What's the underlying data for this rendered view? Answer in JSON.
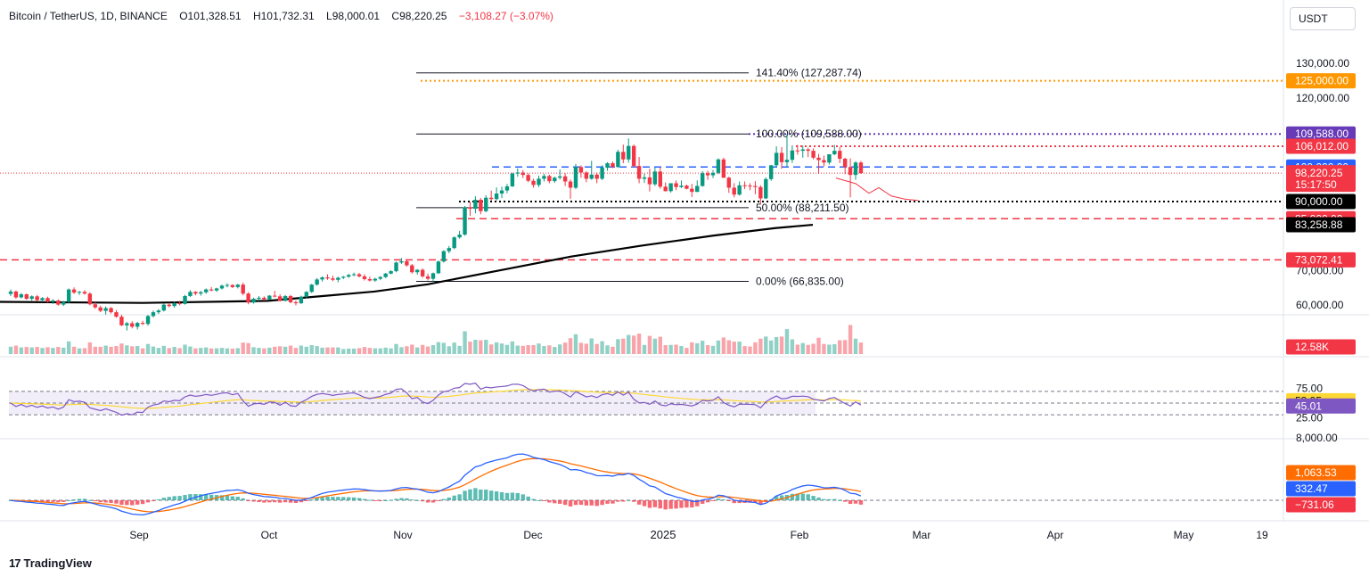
{
  "header": {
    "symbol": "Bitcoin / TetherUS, 1D, BINANCE",
    "open": "O101,328.51",
    "high": "H101,732.31",
    "low": "L98,000.01",
    "close": "C98,220.25",
    "change": "−3,108.27 (−3.07%)"
  },
  "currency_button": "USDT",
  "brand": "TradingView",
  "chart_data": {
    "type": "candlestick",
    "x_ticks": [
      "Sep",
      "Oct",
      "Nov",
      "Dec",
      "2025",
      "Feb",
      "Mar",
      "Apr",
      "May",
      "19"
    ],
    "price_axis": {
      "range": [
        60000,
        132000
      ],
      "tick_labels": [
        "130,000.00",
        "120,000.00",
        "100,000.00",
        "70,000.00",
        "60,000.00"
      ]
    },
    "candles": [
      [
        63200,
        64500,
        62600,
        63900
      ],
      [
        63900,
        64200,
        61800,
        62200
      ],
      [
        62200,
        63500,
        61900,
        63100
      ],
      [
        63100,
        63300,
        61500,
        61800
      ],
      [
        61800,
        62800,
        61200,
        62500
      ],
      [
        62500,
        62900,
        61100,
        61400
      ],
      [
        61400,
        62300,
        60900,
        62000
      ],
      [
        62000,
        62400,
        60700,
        60900
      ],
      [
        60900,
        61700,
        60300,
        61300
      ],
      [
        61300,
        61600,
        59800,
        60100
      ],
      [
        60100,
        61200,
        59700,
        60900
      ],
      [
        60900,
        64800,
        60600,
        64500
      ],
      [
        64500,
        65100,
        63200,
        63600
      ],
      [
        63600,
        64100,
        62900,
        63800
      ],
      [
        63800,
        64300,
        63000,
        63300
      ],
      [
        63300,
        63700,
        59900,
        60200
      ],
      [
        60200,
        60800,
        58900,
        59300
      ],
      [
        59300,
        59800,
        57900,
        58300
      ],
      [
        58300,
        59600,
        57200,
        59100
      ],
      [
        59100,
        59400,
        57500,
        57900
      ],
      [
        57900,
        58500,
        56300,
        56600
      ],
      [
        56600,
        57200,
        53900,
        54100
      ],
      [
        54100,
        55100,
        52600,
        54700
      ],
      [
        54700,
        55300,
        53200,
        53700
      ],
      [
        53700,
        55100,
        52900,
        54800
      ],
      [
        54800,
        55400,
        54200,
        54500
      ],
      [
        54500,
        57100,
        54000,
        56800
      ],
      [
        56800,
        58400,
        56400,
        57900
      ],
      [
        57900,
        58800,
        57400,
        58400
      ],
      [
        58400,
        60400,
        58100,
        60100
      ],
      [
        60100,
        60600,
        59300,
        59700
      ],
      [
        59700,
        61000,
        59200,
        60500
      ],
      [
        60500,
        61200,
        59900,
        60300
      ],
      [
        60300,
        62900,
        60100,
        62600
      ],
      [
        62600,
        64300,
        62300,
        63800
      ],
      [
        63800,
        64000,
        62800,
        63300
      ],
      [
        63300,
        64100,
        62700,
        63700
      ],
      [
        63700,
        64800,
        63200,
        64500
      ],
      [
        64500,
        65200,
        64000,
        64200
      ],
      [
        64200,
        65000,
        63800,
        64800
      ],
      [
        64800,
        65900,
        64500,
        65600
      ],
      [
        65600,
        66300,
        65100,
        65800
      ],
      [
        65800,
        66000,
        64900,
        65200
      ],
      [
        65200,
        66100,
        64800,
        65900
      ],
      [
        65900,
        66500,
        62800,
        63300
      ],
      [
        63300,
        63700,
        60200,
        60700
      ],
      [
        60700,
        62100,
        60400,
        61800
      ],
      [
        61800,
        62600,
        61200,
        62100
      ],
      [
        62100,
        62500,
        61300,
        61600
      ],
      [
        61600,
        62900,
        61400,
        62700
      ],
      [
        62700,
        64100,
        62200,
        62500
      ],
      [
        62500,
        63100,
        61000,
        61200
      ],
      [
        61200,
        62900,
        61000,
        62600
      ],
      [
        62600,
        62900,
        60500,
        60800
      ],
      [
        60800,
        61300,
        59900,
        60500
      ],
      [
        60500,
        62700,
        60300,
        62400
      ],
      [
        62400,
        64000,
        62100,
        63800
      ],
      [
        63800,
        66100,
        63500,
        65900
      ],
      [
        65900,
        67800,
        65600,
        67400
      ],
      [
        67400,
        68300,
        66800,
        68000
      ],
      [
        68000,
        68900,
        67300,
        67700
      ],
      [
        67700,
        68500,
        66900,
        67300
      ],
      [
        67300,
        68200,
        66600,
        67900
      ],
      [
        67900,
        68400,
        67500,
        68200
      ],
      [
        68200,
        69000,
        67900,
        68700
      ],
      [
        68700,
        69400,
        68300,
        68900
      ],
      [
        68900,
        69300,
        68000,
        68300
      ],
      [
        68300,
        68900,
        67100,
        67500
      ],
      [
        67500,
        68200,
        66800,
        67100
      ],
      [
        67100,
        67900,
        66700,
        67600
      ],
      [
        67600,
        68400,
        67200,
        68100
      ],
      [
        68100,
        69300,
        67800,
        69100
      ],
      [
        69100,
        70100,
        68900,
        69800
      ],
      [
        69800,
        72600,
        69500,
        72300
      ],
      [
        72300,
        73600,
        71900,
        72700
      ],
      [
        72700,
        73200,
        71100,
        71500
      ],
      [
        71500,
        71900,
        69100,
        69500
      ],
      [
        69500,
        70400,
        68800,
        70200
      ],
      [
        70200,
        70600,
        67900,
        68300
      ],
      [
        68300,
        69100,
        67100,
        67600
      ],
      [
        67600,
        69400,
        66800,
        69200
      ],
      [
        69200,
        72900,
        69000,
        72600
      ],
      [
        72600,
        75900,
        72300,
        75600
      ],
      [
        75600,
        77100,
        75000,
        76500
      ],
      [
        76500,
        79900,
        76200,
        79600
      ],
      [
        79600,
        81500,
        79200,
        80400
      ],
      [
        80400,
        88700,
        80100,
        88300
      ],
      [
        88300,
        89900,
        85800,
        87900
      ],
      [
        87900,
        91500,
        86600,
        90500
      ],
      [
        90500,
        91000,
        86300,
        87200
      ],
      [
        87200,
        91800,
        86900,
        91100
      ],
      [
        91100,
        93200,
        90300,
        90700
      ],
      [
        90700,
        94100,
        90300,
        92300
      ],
      [
        92300,
        94300,
        91000,
        93200
      ],
      [
        93200,
        95100,
        92400,
        94400
      ],
      [
        94400,
        98400,
        94200,
        98100
      ],
      [
        98100,
        99600,
        97200,
        98400
      ],
      [
        98400,
        99100,
        96800,
        97700
      ],
      [
        97700,
        98200,
        95600,
        96000
      ],
      [
        96000,
        96600,
        94000,
        94800
      ],
      [
        94800,
        97500,
        94200,
        96600
      ],
      [
        96600,
        98000,
        95800,
        97400
      ],
      [
        97400,
        97800,
        95300,
        95900
      ],
      [
        95900,
        97200,
        95400,
        96900
      ],
      [
        96900,
        99300,
        96400,
        97300
      ],
      [
        97300,
        98200,
        94500,
        95800
      ],
      [
        95800,
        96400,
        90800,
        94000
      ],
      [
        94000,
        100900,
        93600,
        100000
      ],
      [
        100000,
        100500,
        96900,
        98400
      ],
      [
        98400,
        98800,
        95600,
        96600
      ],
      [
        96600,
        101800,
        96300,
        97800
      ],
      [
        97800,
        98400,
        95300,
        96600
      ],
      [
        96600,
        100500,
        96200,
        99800
      ],
      [
        99800,
        101400,
        98900,
        101100
      ],
      [
        101100,
        101600,
        99700,
        100000
      ],
      [
        100000,
        105000,
        99800,
        104400
      ],
      [
        104400,
        106500,
        101100,
        102200
      ],
      [
        102200,
        108300,
        101300,
        106100
      ],
      [
        106100,
        106500,
        99800,
        100300
      ],
      [
        100300,
        102900,
        95300,
        96600
      ],
      [
        96600,
        98100,
        95400,
        97000
      ],
      [
        97000,
        99500,
        92900,
        95000
      ],
      [
        95000,
        99900,
        94500,
        98700
      ],
      [
        98700,
        99900,
        93700,
        94300
      ],
      [
        94300,
        95500,
        92900,
        93000
      ],
      [
        93000,
        95300,
        92600,
        95300
      ],
      [
        95300,
        96100,
        93300,
        94200
      ],
      [
        94200,
        96100,
        93900,
        94600
      ],
      [
        94600,
        94900,
        93500,
        93700
      ],
      [
        93700,
        95100,
        91300,
        92800
      ],
      [
        92800,
        96100,
        92700,
        94500
      ],
      [
        94500,
        98800,
        94300,
        98200
      ],
      [
        98200,
        98900,
        96300,
        97600
      ],
      [
        97600,
        99100,
        96800,
        98300
      ],
      [
        98300,
        102500,
        97900,
        102200
      ],
      [
        102200,
        102700,
        96800,
        96900
      ],
      [
        96900,
        97200,
        92500,
        94000
      ],
      [
        94000,
        95300,
        91200,
        92000
      ],
      [
        92000,
        95800,
        91700,
        94700
      ],
      [
        94700,
        95800,
        93600,
        94600
      ],
      [
        94600,
        95300,
        93300,
        94500
      ],
      [
        94500,
        95900,
        92100,
        94200
      ],
      [
        94200,
        94700,
        89300,
        90900
      ],
      [
        90900,
        97000,
        90700,
        96500
      ],
      [
        96500,
        100600,
        96000,
        100500
      ],
      [
        100500,
        106000,
        99900,
        104100
      ],
      [
        104100,
        105800,
        99500,
        101400
      ],
      [
        101400,
        109600,
        100100,
        102100
      ],
      [
        102100,
        106300,
        101200,
        104800
      ],
      [
        104800,
        106400,
        103600,
        104700
      ],
      [
        104700,
        106200,
        102700,
        105100
      ],
      [
        105100,
        105600,
        102900,
        104700
      ],
      [
        104700,
        105400,
        102200,
        102700
      ],
      [
        102700,
        103800,
        98000,
        102000
      ],
      [
        102000,
        103300,
        100200,
        101300
      ],
      [
        101300,
        103500,
        100700,
        103700
      ],
      [
        103700,
        106400,
        103400,
        104700
      ],
      [
        104700,
        105800,
        101100,
        102400
      ],
      [
        102400,
        102700,
        97900,
        100000
      ],
      [
        100000,
        102500,
        91200,
        97700
      ],
      [
        97700,
        101700,
        96300,
        101300
      ],
      [
        101300,
        101732,
        98000,
        98220
      ]
    ],
    "sma200": [
      {
        "x": 0,
        "price": 60900
      },
      {
        "x": 160,
        "price": 60600
      },
      {
        "x": 300,
        "price": 61200
      },
      {
        "x": 420,
        "price": 63900
      },
      {
        "x": 480,
        "price": 66000
      },
      {
        "x": 560,
        "price": 70000
      },
      {
        "x": 640,
        "price": 74000
      },
      {
        "x": 720,
        "price": 77200
      },
      {
        "x": 800,
        "price": 80100
      },
      {
        "x": 870,
        "price": 82300
      },
      {
        "x": 912,
        "price": 83258.88
      }
    ],
    "projection_path": [
      {
        "x": 938,
        "price": 96800
      },
      {
        "x": 960,
        "price": 95200
      },
      {
        "x": 975,
        "price": 92400
      },
      {
        "x": 986,
        "price": 94000
      },
      {
        "x": 1000,
        "price": 91600
      },
      {
        "x": 1015,
        "price": 90700
      },
      {
        "x": 1030,
        "price": 90300
      }
    ],
    "fibonacci": [
      {
        "label": "141.40% (127,287.74)",
        "price": 127287.74
      },
      {
        "label": "100.00% (109,588.00)",
        "price": 109588
      },
      {
        "label": "50.00% (88,211.50)",
        "price": 88211.5
      },
      {
        "label": "0.00% (66,835.00)",
        "price": 66835
      }
    ],
    "levels": [
      {
        "label": "125,000.00",
        "price": 125000,
        "color": "#ff9800",
        "style": "dotted"
      },
      {
        "label": "109,588.00",
        "price": 109588,
        "color": "#673ab7",
        "style": "dotted"
      },
      {
        "label": "106,012.00",
        "price": 106012,
        "color": "#f23645",
        "style": "dotted"
      },
      {
        "label": "100,000.00",
        "price": 100000,
        "color": "#2962ff",
        "style": "dashed"
      },
      {
        "label": "90,000.00",
        "price": 90000,
        "color": "#000000",
        "style": "dotted"
      },
      {
        "label": "85,000.00",
        "price": 85000,
        "color": "#f23645",
        "style": "dashed"
      },
      {
        "label": "73,072.41",
        "price": 73072.41,
        "color": "#f23645",
        "style": "dashed"
      }
    ],
    "last_price": {
      "label": "98,220.25",
      "countdown": "15:17:50",
      "price": 98220.25,
      "color": "#f23645"
    },
    "sma_label": {
      "label": "83,258.88",
      "price": 83258.88,
      "color": "#000000"
    },
    "volume": {
      "last_label": "12.58K",
      "last_value": 12580,
      "color": "#f23645",
      "max": 37000
    },
    "rsi": {
      "tick_labels": [
        "75.00",
        "25.00"
      ],
      "upper": 70,
      "lower": 30,
      "mid": 50,
      "rsi_label": "45.01",
      "rsi_value": 45.01,
      "rsi_color": "#7e57c2",
      "ma_label": "53.95",
      "ma_value": 53.95,
      "ma_color": "#fdd835"
    },
    "macd": {
      "tick_labels": [
        "8,000.00"
      ],
      "signal_label": "1,063.53",
      "signal_value": 1063.53,
      "signal_color": "#ff6d00",
      "macd_label": "332.47",
      "macd_value": 332.47,
      "macd_color": "#2962ff",
      "hist_label": "−731.06",
      "hist_value": -731.06,
      "hist_color": "#f23645"
    }
  }
}
